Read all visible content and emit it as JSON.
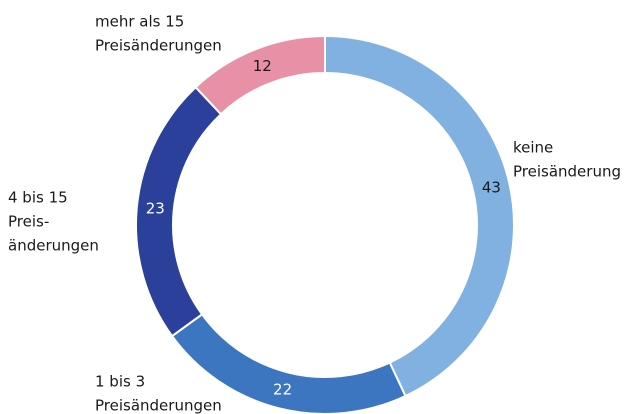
{
  "chart_data": {
    "type": "donut",
    "categories": [
      [
        "keine",
        "Preisänderung"
      ],
      [
        "1 bis 3",
        "Preisänderungen"
      ],
      [
        "4 bis 15",
        "Preis-",
        "änderungen"
      ],
      [
        "mehr als 15",
        "Preisänderungen"
      ]
    ],
    "values": [
      43,
      22,
      23,
      12
    ],
    "colors": [
      "#80b1e0",
      "#3d76c0",
      "#2b409a",
      "#e891a6"
    ]
  }
}
